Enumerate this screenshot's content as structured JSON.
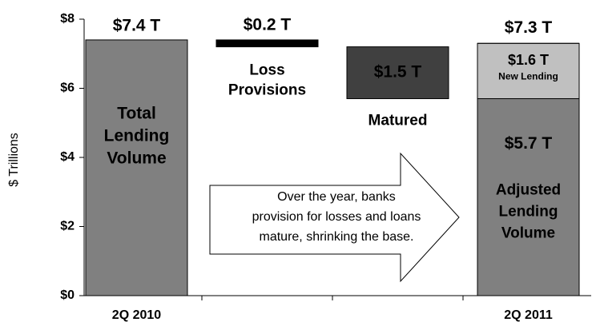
{
  "chart_data": {
    "type": "waterfall",
    "y_label": "$ Trillions",
    "ylim": [
      0,
      8
    ],
    "yticks": [
      {
        "value": 0,
        "label": "$0"
      },
      {
        "value": 2,
        "label": "$2"
      },
      {
        "value": 4,
        "label": "$4"
      },
      {
        "value": 6,
        "label": "$6"
      },
      {
        "value": 8,
        "label": "$8"
      }
    ],
    "categories": [
      "2Q 2010",
      null,
      null,
      "2Q 2011"
    ],
    "bars": [
      {
        "name": [
          "Total",
          "Lending",
          "Volume"
        ],
        "value": 7.4,
        "value_label": "$7.4 T",
        "measure": "absolute",
        "color": "#808080"
      },
      {
        "name": [
          "Loss",
          "Provisions"
        ],
        "value": 0.2,
        "value_label": "$0.2 T",
        "measure": "decrease",
        "color": "#000000"
      },
      {
        "name": [
          "Matured"
        ],
        "value": 1.5,
        "value_label": "$1.5 T",
        "measure": "decrease",
        "color": "#404040"
      },
      {
        "name": [
          "Adjusted",
          "Lending",
          "Volume"
        ],
        "value": 5.7,
        "value_label": "$5.7 T",
        "measure": "absolute",
        "color": "#808080"
      },
      {
        "name": [
          "New Lending"
        ],
        "value": 1.6,
        "value_label": "$1.6 T",
        "measure": "increase",
        "color": "#c0c0c0"
      }
    ],
    "total": {
      "value": 7.3,
      "label": "$7.3 T"
    },
    "annotation": [
      "Over the year, banks",
      "provision for losses and loans",
      "mature, shrinking the base."
    ]
  }
}
